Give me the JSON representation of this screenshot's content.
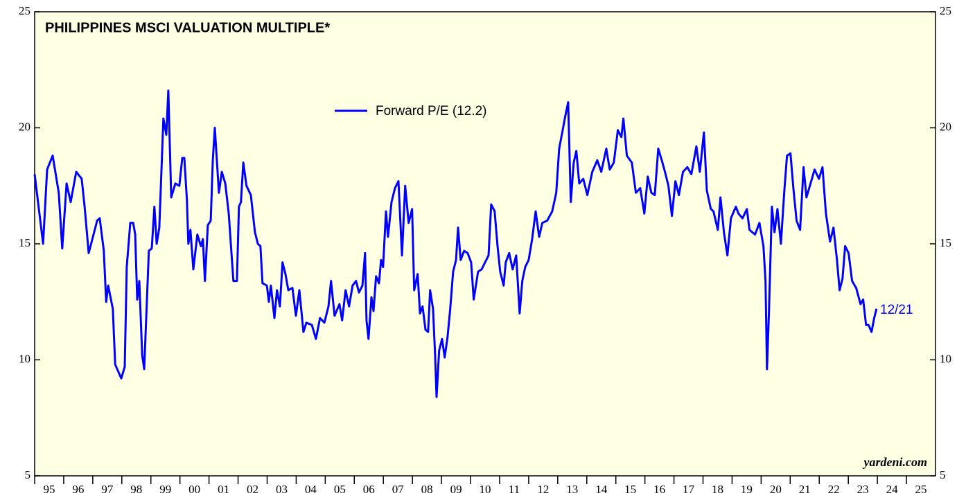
{
  "chart_data": {
    "type": "line",
    "title": "PHILIPPINES MSCI VALUATION MULTIPLE*",
    "source": "yardeni.com",
    "annotation": "12/21",
    "x": [
      1995.0,
      1995.29,
      1995.43,
      1995.62,
      1995.83,
      1995.95,
      1996.1,
      1996.24,
      1996.43,
      1996.62,
      1996.72,
      1996.86,
      1997.15,
      1997.24,
      1997.38,
      1997.46,
      1997.53,
      1997.69,
      1997.77,
      1997.98,
      1998.1,
      1998.17,
      1998.29,
      1998.39,
      1998.46,
      1998.53,
      1998.6,
      1998.7,
      1998.77,
      1998.93,
      1999.03,
      1999.12,
      1999.2,
      1999.29,
      1999.43,
      1999.53,
      1999.6,
      1999.7,
      1999.84,
      1999.98,
      2000.08,
      2000.15,
      2000.24,
      2000.29,
      2000.36,
      2000.46,
      2000.6,
      2000.72,
      2000.79,
      2000.86,
      2000.96,
      2001.06,
      2001.13,
      2001.2,
      2001.34,
      2001.44,
      2001.56,
      2001.68,
      2001.84,
      2001.96,
      2002.03,
      2002.1,
      2002.18,
      2002.29,
      2002.44,
      2002.58,
      2002.68,
      2002.77,
      2002.84,
      2002.99,
      2003.06,
      2003.13,
      2003.25,
      2003.34,
      2003.44,
      2003.53,
      2003.63,
      2003.73,
      2003.87,
      2003.99,
      2004.11,
      2004.25,
      2004.35,
      2004.54,
      2004.68,
      2004.82,
      2004.97,
      2005.11,
      2005.2,
      2005.32,
      2005.49,
      2005.58,
      2005.7,
      2005.82,
      2005.94,
      2006.06,
      2006.16,
      2006.28,
      2006.37,
      2006.42,
      2006.49,
      2006.59,
      2006.66,
      2006.75,
      2006.85,
      2006.92,
      2006.99,
      2007.09,
      2007.16,
      2007.28,
      2007.4,
      2007.52,
      2007.64,
      2007.75,
      2007.87,
      2007.99,
      2008.06,
      2008.18,
      2008.26,
      2008.35,
      2008.45,
      2008.54,
      2008.61,
      2008.71,
      2008.78,
      2008.83,
      2008.92,
      2009.02,
      2009.11,
      2009.21,
      2009.3,
      2009.4,
      2009.5,
      2009.57,
      2009.66,
      2009.78,
      2009.9,
      2010.02,
      2010.11,
      2010.26,
      2010.38,
      2010.5,
      2010.62,
      2010.71,
      2010.83,
      2010.93,
      2011.02,
      2011.14,
      2011.21,
      2011.33,
      2011.45,
      2011.57,
      2011.69,
      2011.78,
      2011.88,
      2012.0,
      2012.12,
      2012.24,
      2012.36,
      2012.47,
      2012.64,
      2012.81,
      2012.95,
      2013.05,
      2013.17,
      2013.26,
      2013.36,
      2013.45,
      2013.55,
      2013.64,
      2013.74,
      2013.88,
      2014.02,
      2014.19,
      2014.36,
      2014.5,
      2014.67,
      2014.79,
      2014.93,
      2015.07,
      2015.19,
      2015.26,
      2015.38,
      2015.55,
      2015.69,
      2015.84,
      2015.98,
      2016.1,
      2016.22,
      2016.34,
      2016.46,
      2016.58,
      2016.69,
      2016.81,
      2016.93,
      2017.05,
      2017.17,
      2017.31,
      2017.46,
      2017.6,
      2017.77,
      2017.89,
      2018.03,
      2018.13,
      2018.27,
      2018.36,
      2018.51,
      2018.6,
      2018.72,
      2018.84,
      2018.96,
      2019.13,
      2019.22,
      2019.36,
      2019.51,
      2019.6,
      2019.79,
      2019.94,
      2020.08,
      2020.15,
      2020.2,
      2020.27,
      2020.37,
      2020.46,
      2020.56,
      2020.68,
      2020.8,
      2020.89,
      2021.01,
      2021.11,
      2021.22,
      2021.34,
      2021.46,
      2021.56,
      2021.7,
      2021.84,
      2021.99,
      2022.11,
      2022.23,
      2022.37,
      2022.49,
      2022.61,
      2022.7,
      2022.8,
      2022.89,
      2023.01,
      2023.13,
      2023.27,
      2023.42,
      2023.51,
      2023.61,
      2023.7,
      2023.8,
      2023.89,
      2023.97
    ],
    "series": [
      {
        "name": "Forward P/E (12.2)",
        "color": "#0000ff",
        "values": [
          18.0,
          15.0,
          18.2,
          18.8,
          17.2,
          14.8,
          17.6,
          16.8,
          18.1,
          17.8,
          16.6,
          14.6,
          16.0,
          16.1,
          14.7,
          12.5,
          13.2,
          12.2,
          9.8,
          9.2,
          9.7,
          14.0,
          15.9,
          15.9,
          15.4,
          12.6,
          13.4,
          10.2,
          9.6,
          14.7,
          14.8,
          16.6,
          15.0,
          15.7,
          20.4,
          19.7,
          21.6,
          17.0,
          17.6,
          17.5,
          18.7,
          18.7,
          16.9,
          15.0,
          15.6,
          13.9,
          15.4,
          14.9,
          15.2,
          13.4,
          15.8,
          16.0,
          18.6,
          20.0,
          17.2,
          18.1,
          17.6,
          16.3,
          13.4,
          13.4,
          16.6,
          16.8,
          18.5,
          17.5,
          17.1,
          15.5,
          15.0,
          14.9,
          13.3,
          13.2,
          12.5,
          13.2,
          11.8,
          13.0,
          12.3,
          14.2,
          13.7,
          13.0,
          13.1,
          11.9,
          13.0,
          11.2,
          11.6,
          11.5,
          10.9,
          11.8,
          11.6,
          12.3,
          13.4,
          11.9,
          12.4,
          11.7,
          13.0,
          12.3,
          13.2,
          13.4,
          12.9,
          13.2,
          14.6,
          11.7,
          10.9,
          12.7,
          12.1,
          13.6,
          13.3,
          14.3,
          14.0,
          16.4,
          15.3,
          16.8,
          17.4,
          17.7,
          14.5,
          17.5,
          15.9,
          16.5,
          13.0,
          13.7,
          12.0,
          12.3,
          11.3,
          11.2,
          13.0,
          12.2,
          10.2,
          8.4,
          10.4,
          10.9,
          10.1,
          11.0,
          12.2,
          13.8,
          14.3,
          15.7,
          14.3,
          14.7,
          14.6,
          14.2,
          12.6,
          13.8,
          13.9,
          14.2,
          14.5,
          16.7,
          16.4,
          14.9,
          13.8,
          13.2,
          14.2,
          14.6,
          13.9,
          14.5,
          12.0,
          13.4,
          14.0,
          14.3,
          15.2,
          16.4,
          15.3,
          15.9,
          16.0,
          16.4,
          17.2,
          19.1,
          19.9,
          20.5,
          21.1,
          16.8,
          18.5,
          19.0,
          17.6,
          17.8,
          17.1,
          18.1,
          18.6,
          18.1,
          19.1,
          18.2,
          18.5,
          19.9,
          19.6,
          20.4,
          18.8,
          18.5,
          17.2,
          17.4,
          16.3,
          17.9,
          17.2,
          17.1,
          19.1,
          18.6,
          18.1,
          17.5,
          16.2,
          17.7,
          17.1,
          18.1,
          18.3,
          18.0,
          19.2,
          18.1,
          19.8,
          17.3,
          16.5,
          16.4,
          15.6,
          17.0,
          15.5,
          14.5,
          16.1,
          16.6,
          16.3,
          16.1,
          16.5,
          15.6,
          15.4,
          15.9,
          14.9,
          13.4,
          9.6,
          12.1,
          16.6,
          15.5,
          16.5,
          15.0,
          17.3,
          18.8,
          18.9,
          17.4,
          16.0,
          15.6,
          18.3,
          17.0,
          17.6,
          18.2,
          17.8,
          18.3,
          16.3,
          15.1,
          15.7,
          14.3,
          13.0,
          13.5,
          14.9,
          14.6,
          13.4,
          13.1,
          12.4,
          12.6,
          11.5,
          11.5,
          11.2,
          11.8,
          12.2
        ]
      }
    ],
    "xlim": [
      1995,
      2026
    ],
    "xticks": [
      {
        "value": 1995,
        "label": "95"
      },
      {
        "value": 1996,
        "label": "96"
      },
      {
        "value": 1997,
        "label": "97"
      },
      {
        "value": 1998,
        "label": "98"
      },
      {
        "value": 1999,
        "label": "99"
      },
      {
        "value": 2000,
        "label": "00"
      },
      {
        "value": 2001,
        "label": "01"
      },
      {
        "value": 2002,
        "label": "02"
      },
      {
        "value": 2003,
        "label": "03"
      },
      {
        "value": 2004,
        "label": "04"
      },
      {
        "value": 2005,
        "label": "05"
      },
      {
        "value": 2006,
        "label": "06"
      },
      {
        "value": 2007,
        "label": "07"
      },
      {
        "value": 2008,
        "label": "08"
      },
      {
        "value": 2009,
        "label": "09"
      },
      {
        "value": 2010,
        "label": "10"
      },
      {
        "value": 2011,
        "label": "11"
      },
      {
        "value": 2012,
        "label": "12"
      },
      {
        "value": 2013,
        "label": "13"
      },
      {
        "value": 2014,
        "label": "14"
      },
      {
        "value": 2015,
        "label": "15"
      },
      {
        "value": 2016,
        "label": "16"
      },
      {
        "value": 2017,
        "label": "17"
      },
      {
        "value": 2018,
        "label": "18"
      },
      {
        "value": 2019,
        "label": "19"
      },
      {
        "value": 2020,
        "label": "20"
      },
      {
        "value": 2021,
        "label": "21"
      },
      {
        "value": 2022,
        "label": "22"
      },
      {
        "value": 2023,
        "label": "23"
      },
      {
        "value": 2024,
        "label": "24"
      },
      {
        "value": 2025,
        "label": "25"
      }
    ],
    "ylim": [
      5,
      25
    ],
    "yticks": [
      5,
      10,
      15,
      20,
      25
    ]
  }
}
